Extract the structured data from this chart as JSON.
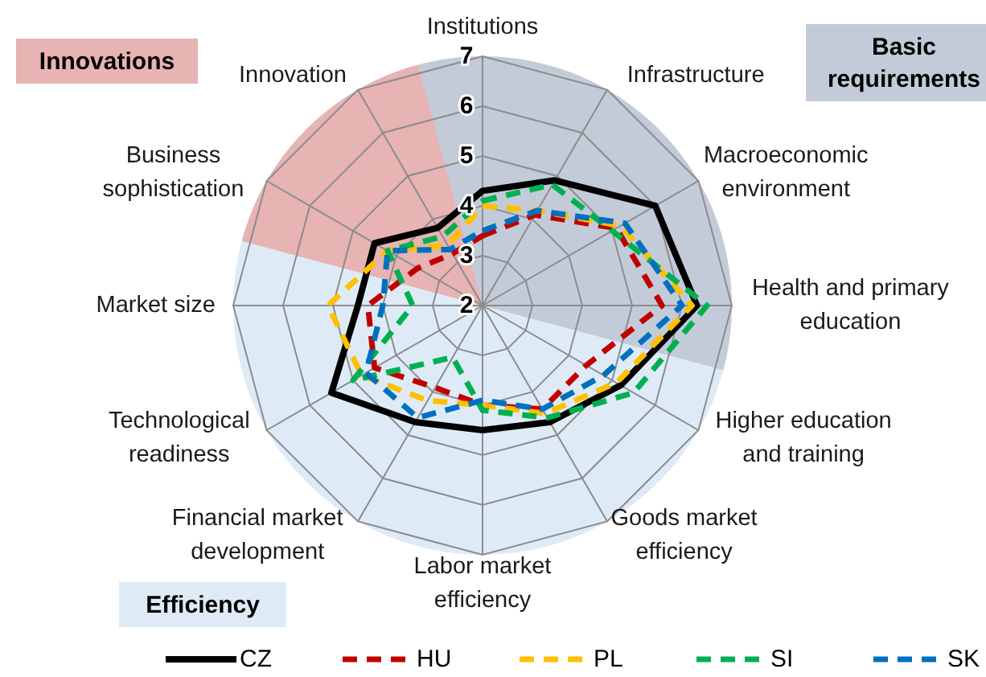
{
  "chart_data": {
    "type": "radar",
    "categories": [
      "Institutions",
      "Infrastructure",
      "Macroeconomic environment",
      "Health and primary education",
      "Higher education and training",
      "Goods market efficiency",
      "Labor market efficiency",
      "Financial market development",
      "Technological readiness",
      "Market size",
      "Business sophistication",
      "Innovation"
    ],
    "ylim": [
      2,
      7
    ],
    "yticks": [
      2,
      3,
      4,
      5,
      6,
      7
    ],
    "grid": true,
    "legend": "bottom",
    "marker": "none",
    "annotations": [
      "Basic requirements",
      "Efficiency",
      "Innovations"
    ],
    "series": [
      {
        "name": "CZ",
        "color": "#000000",
        "line_style": "solid",
        "values": [
          4.3,
          4.9,
          6.0,
          6.3,
          5.2,
          4.7,
          4.5,
          4.7,
          5.5,
          4.5,
          4.5,
          3.8
        ]
      },
      {
        "name": "HU",
        "color": "#c00000",
        "line_style": "dashed",
        "values": [
          3.4,
          4.1,
          5.1,
          5.6,
          4.4,
          4.4,
          4.0,
          3.9,
          4.5,
          4.3,
          3.5,
          3.2
        ]
      },
      {
        "name": "PL",
        "color": "#ffc000",
        "line_style": "dashed",
        "values": [
          4.0,
          4.2,
          5.2,
          6.2,
          5.1,
          4.5,
          4.0,
          4.2,
          4.8,
          5.1,
          4.2,
          3.4
        ]
      },
      {
        "name": "SI",
        "color": "#00b050",
        "line_style": "dashed",
        "values": [
          4.1,
          4.8,
          5.0,
          6.5,
          5.5,
          4.6,
          4.1,
          3.2,
          5.0,
          3.4,
          4.2,
          3.6
        ]
      },
      {
        "name": "SK",
        "color": "#0070c0",
        "line_style": "dashed",
        "values": [
          3.5,
          4.2,
          5.3,
          6.0,
          4.8,
          4.4,
          3.9,
          4.6,
          4.7,
          4.0,
          4.2,
          3.3
        ]
      }
    ]
  }
}
